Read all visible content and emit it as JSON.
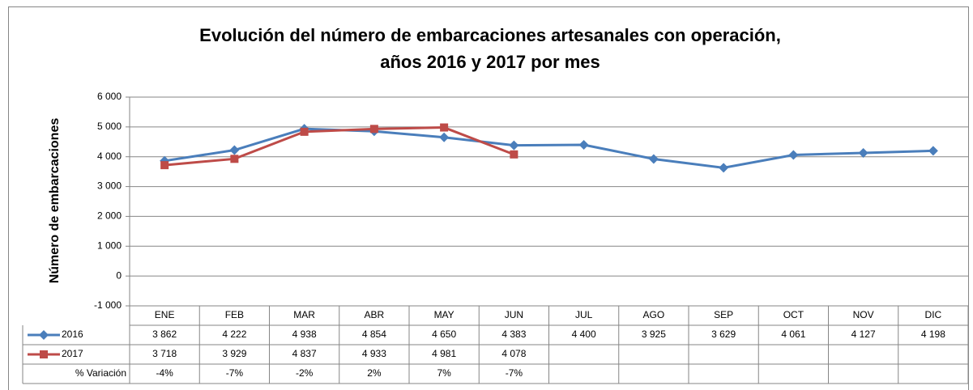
{
  "chart_data": {
    "type": "line",
    "title": "Evolución del número de embarcaciones artesanales con operación,",
    "subtitle": "años 2016 y 2017 por mes",
    "y_label": "Número de embarcaciones",
    "categories": [
      "ENE",
      "FEB",
      "MAR",
      "ABR",
      "MAY",
      "JUN",
      "JUL",
      "AGO",
      "SEP",
      "OCT",
      "NOV",
      "DIC"
    ],
    "series": [
      {
        "name": "2016",
        "color": "#4a7ebb",
        "marker": "diamond",
        "values": [
          3862,
          4222,
          4938,
          4854,
          4650,
          4383,
          4400,
          3925,
          3629,
          4061,
          4127,
          4198
        ],
        "value_labels": [
          "3 862",
          "4 222",
          "4 938",
          "4 854",
          "4 650",
          "4 383",
          "4 400",
          "3 925",
          "3 629",
          "4 061",
          "4 127",
          "4 198"
        ]
      },
      {
        "name": "2017",
        "color": "#be4b48",
        "marker": "square",
        "values": [
          3718,
          3929,
          4837,
          4933,
          4981,
          4078,
          null,
          null,
          null,
          null,
          null,
          null
        ],
        "value_labels": [
          "3 718",
          "3 929",
          "4 837",
          "4 933",
          "4 981",
          "4 078",
          null,
          null,
          null,
          null,
          null,
          null
        ]
      }
    ],
    "variation": {
      "name": "% Variación",
      "values": [
        -4,
        -7,
        -2,
        2,
        7,
        -7
      ],
      "value_labels": [
        "-4%",
        "-7%",
        "-2%",
        "2%",
        "7%",
        "-7%"
      ]
    },
    "ylim": [
      -1000,
      6000
    ],
    "yticks": [
      {
        "value": -1000,
        "label": "-1 000"
      },
      0,
      {
        "value": 1000,
        "label": "1 000"
      },
      {
        "value": 2000,
        "label": "2 000"
      },
      {
        "value": 3000,
        "label": "3 000"
      },
      {
        "value": 4000,
        "label": "4 000"
      },
      {
        "value": 5000,
        "label": "5 000"
      },
      {
        "value": 6000,
        "label": "6 000"
      }
    ],
    "grid": true
  }
}
